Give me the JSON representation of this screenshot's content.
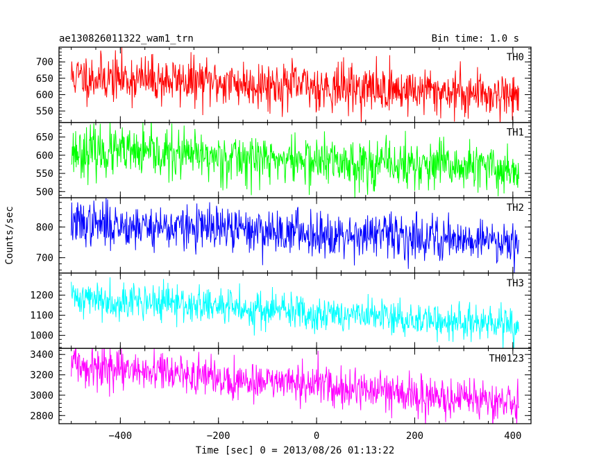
{
  "header": {
    "title": "ae130826011322_wam1_trn",
    "bin_time": "Bin time: 1.0 s"
  },
  "chart_data": [
    {
      "type": "line",
      "series": [
        {
          "name": "TH0",
          "color": "#ff0000",
          "x_start": -500,
          "x_end": 412,
          "step": 1,
          "mean_start": 655,
          "mean_end": 600,
          "noise": 36,
          "seed": 11
        }
      ],
      "ylim": [
        515,
        745
      ],
      "yticks": [
        550,
        600,
        650,
        700
      ],
      "ylabel": ""
    },
    {
      "type": "line",
      "series": [
        {
          "name": "TH1",
          "color": "#00ff00",
          "x_start": -500,
          "x_end": 412,
          "step": 1,
          "mean_start": 612,
          "mean_end": 560,
          "noise": 34,
          "seed": 23
        }
      ],
      "ylim": [
        483,
        690
      ],
      "yticks": [
        500,
        550,
        600,
        650
      ],
      "ylabel": ""
    },
    {
      "type": "line",
      "series": [
        {
          "name": "TH2",
          "color": "#0000ff",
          "x_start": -500,
          "x_end": 412,
          "step": 1,
          "mean_start": 812,
          "mean_end": 755,
          "noise": 36,
          "seed": 37
        }
      ],
      "ylim": [
        650,
        895
      ],
      "yticks": [
        700,
        800
      ],
      "ylabel": ""
    },
    {
      "type": "line",
      "series": [
        {
          "name": "TH3",
          "color": "#00ffff",
          "x_start": -500,
          "x_end": 412,
          "step": 1,
          "mean_start": 1190,
          "mean_end": 1045,
          "noise": 46,
          "seed": 41
        }
      ],
      "ylim": [
        935,
        1310
      ],
      "yticks": [
        1000,
        1100,
        1200
      ],
      "ylabel": "Counts/sec"
    },
    {
      "type": "line",
      "series": [
        {
          "name": "TH0123",
          "color": "#ff00ff",
          "x_start": -500,
          "x_end": 412,
          "step": 1,
          "mean_start": 3290,
          "mean_end": 2920,
          "noise": 95,
          "seed": 59
        }
      ],
      "ylim": [
        2720,
        3460
      ],
      "yticks": [
        2800,
        3000,
        3200,
        3400
      ],
      "ylabel": ""
    }
  ],
  "x_axis": {
    "xlim": [
      -525,
      437
    ],
    "ticks": [
      -400,
      -200,
      0,
      200,
      400
    ],
    "label": "Time [sec] 0 = 2013/08/26 01:13:22"
  }
}
